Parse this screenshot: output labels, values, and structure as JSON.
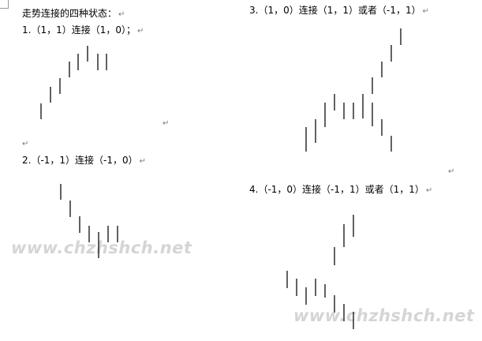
{
  "heading": "走势连接的四种状态：",
  "sections": [
    {
      "label": "1.（1，1）连接（1，0）；"
    },
    {
      "label": "2.（-1，1）连接（-1，0）"
    },
    {
      "label": "3.（1，0）连接（1，1）或者（-1，1）"
    },
    {
      "label": "4.（-1，0）连接（-1，1）或者（1，1）"
    }
  ],
  "paragraph_mark": "↵",
  "watermark": "www.chzhshch.net",
  "bar_color": "#3a3a3a"
}
